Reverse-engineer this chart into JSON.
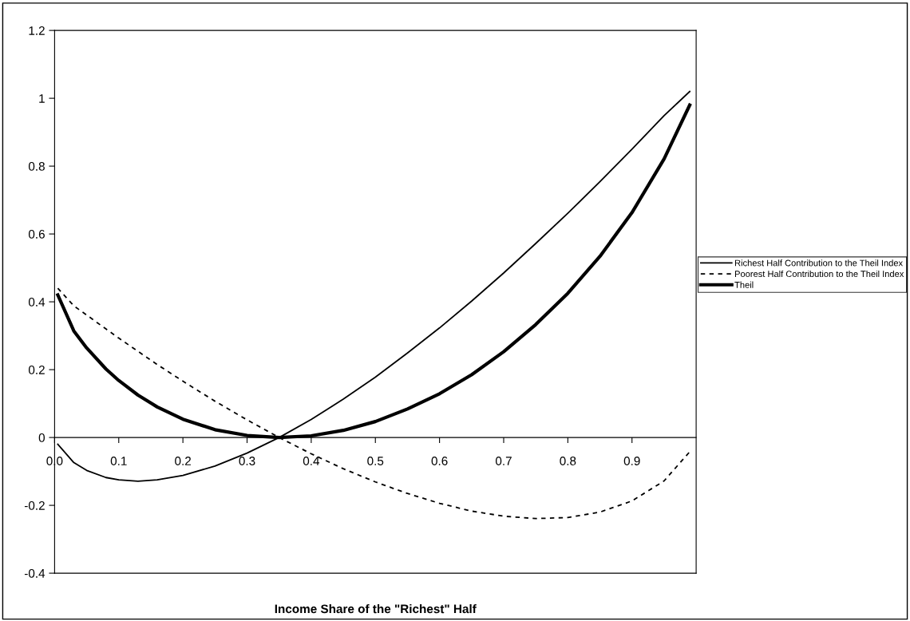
{
  "chart_data": {
    "type": "line",
    "xlabel": "Income Share of the \"Richest\" Half",
    "x": [
      0.005,
      0.03,
      0.05,
      0.08,
      0.1,
      0.13,
      0.16,
      0.2,
      0.25,
      0.3,
      0.35,
      0.4,
      0.45,
      0.5,
      0.55,
      0.6,
      0.65,
      0.7,
      0.75,
      0.8,
      0.85,
      0.9,
      0.95,
      0.99
    ],
    "series": [
      {
        "name": "Richest Half Contribution to the Theil Index",
        "color": "#000000",
        "line_style": "solid",
        "values": [
          -0.02,
          -0.074,
          -0.097,
          -0.118,
          -0.125,
          -0.129,
          -0.125,
          -0.112,
          -0.084,
          -0.046,
          0.0,
          0.053,
          0.113,
          0.178,
          0.249,
          0.323,
          0.402,
          0.485,
          0.572,
          0.661,
          0.754,
          0.85,
          0.949,
          1.02
        ]
      },
      {
        "name": "Poorest Half Contribution to the Theil Index",
        "color": "#000000",
        "line_style": "dashed",
        "values": [
          0.44,
          0.388,
          0.361,
          0.32,
          0.293,
          0.254,
          0.215,
          0.166,
          0.107,
          0.052,
          0.0,
          -0.048,
          -0.092,
          -0.131,
          -0.165,
          -0.194,
          -0.217,
          -0.232,
          -0.239,
          -0.236,
          -0.22,
          -0.187,
          -0.128,
          -0.042
        ]
      },
      {
        "name": "Theil",
        "color": "#000000",
        "line_style": "solid",
        "values": [
          0.42,
          0.314,
          0.264,
          0.202,
          0.168,
          0.125,
          0.09,
          0.054,
          0.023,
          0.006,
          0.0,
          0.005,
          0.021,
          0.047,
          0.084,
          0.129,
          0.185,
          0.253,
          0.333,
          0.425,
          0.534,
          0.663,
          0.821,
          0.98
        ]
      }
    ],
    "xlim": [
      0,
      1.0
    ],
    "xticks": [
      {
        "value": 0,
        "label": "0.0"
      },
      0.1,
      0.2,
      0.3,
      0.4,
      0.5,
      0.6,
      0.7,
      0.8,
      0.9
    ],
    "ylim": [
      -0.4,
      1.2
    ],
    "yticks": [
      {
        "value": -0.4,
        "label": "-0.4"
      },
      {
        "value": -0.2,
        "label": "-0.2"
      },
      0,
      0.2,
      0.4,
      0.6,
      0.8,
      1,
      1.2
    ],
    "grid": false,
    "legend": "right",
    "marker": "none"
  }
}
